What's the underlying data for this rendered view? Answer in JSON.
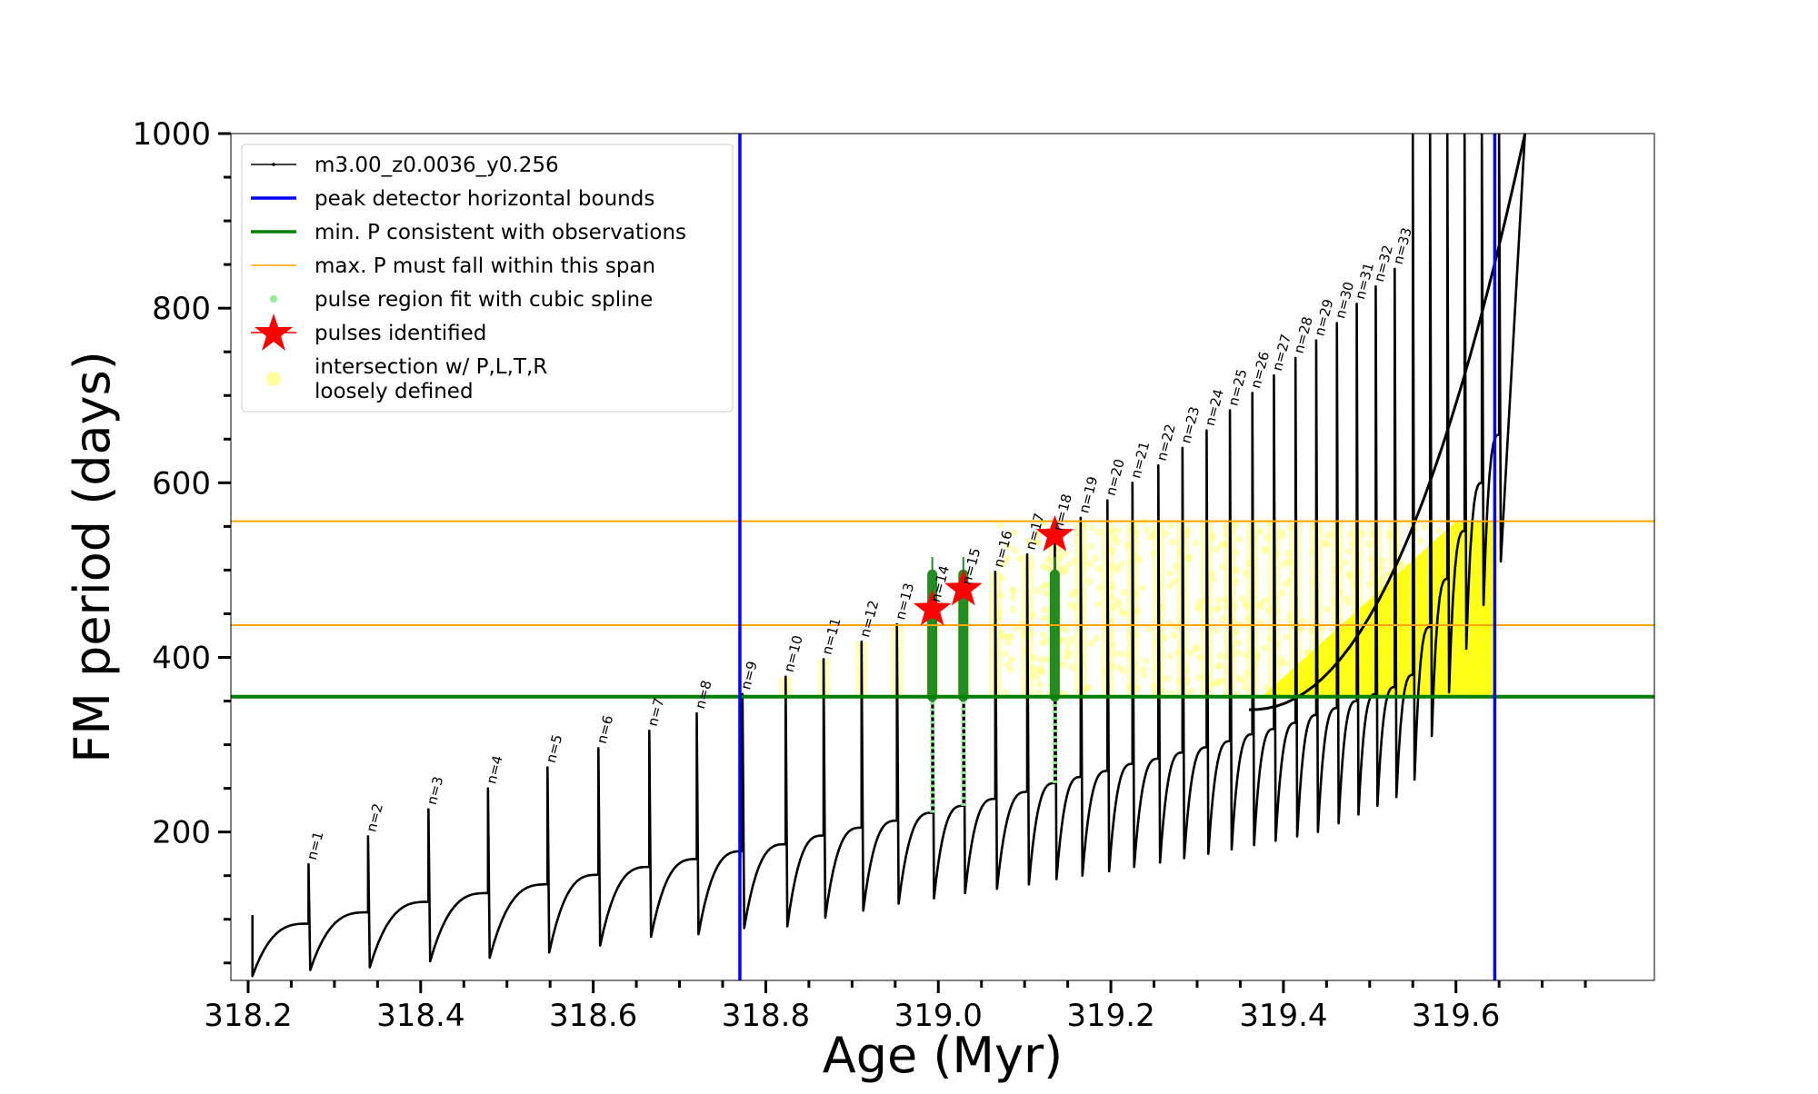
{
  "chart_data": {
    "type": "line",
    "title": "",
    "xlabel": "Age (Myr)",
    "ylabel": "FM period (days)",
    "xlim": [
      318.18,
      319.83
    ],
    "ylim": [
      30,
      1000
    ],
    "x_ticks": [
      318.2,
      318.4,
      318.6,
      318.8,
      319.0,
      319.2,
      319.4,
      319.6
    ],
    "x_tick_labels": [
      "318.2",
      "318.4",
      "318.6",
      "318.8",
      "319.0",
      "319.2",
      "319.4",
      "319.6"
    ],
    "y_ticks": [
      200,
      400,
      600,
      800,
      1000
    ],
    "y_tick_labels": [
      "200",
      "400",
      "600",
      "800",
      "1000"
    ],
    "legend": {
      "placement": "upper-left",
      "entries": [
        {
          "label": "m3.00_z0.0036_y0.256",
          "color": "#000000",
          "marker": "line-dot"
        },
        {
          "label": "peak detector horizontal bounds",
          "color": "#0000ff",
          "marker": "line"
        },
        {
          "label": "min. P consistent with observations",
          "color": "#008000",
          "marker": "line"
        },
        {
          "label": "max. P must fall within this span",
          "color": "#ffa500",
          "marker": "thin-line"
        },
        {
          "label": "pulse region fit with cubic spline",
          "color": "#90ee90",
          "marker": "dot"
        },
        {
          "label": "pulses identified",
          "color": "#ff0000",
          "marker": "star"
        },
        {
          "label": "intersection w/ P,L,T,R",
          "label2": "loosely defined",
          "color": "#ffffa0",
          "marker": "circle"
        }
      ]
    },
    "vertical_lines": [
      {
        "x": 318.77,
        "color": "#0000ff",
        "label": "peak detector horizontal bounds"
      },
      {
        "x": 319.645,
        "color": "#0000ff",
        "label": "peak detector horizontal bounds"
      }
    ],
    "horizontal_lines": [
      {
        "y": 355,
        "color": "#008000",
        "label": "min. P consistent with observations"
      },
      {
        "y": 437,
        "color": "#ffa500",
        "label": "max. P must fall within this span"
      },
      {
        "y": 556,
        "color": "#ffa500",
        "label": "max. P must fall within this span"
      }
    ],
    "pulses": [
      {
        "n": 1,
        "x": 318.27,
        "peak": 163,
        "min": 42,
        "base_before": 95
      },
      {
        "n": 2,
        "x": 318.339,
        "peak": 195,
        "min": 45,
        "base_before": 108
      },
      {
        "n": 3,
        "x": 318.409,
        "peak": 226,
        "min": 52,
        "base_before": 120
      },
      {
        "n": 4,
        "x": 318.478,
        "peak": 250,
        "min": 56,
        "base_before": 130
      },
      {
        "n": 5,
        "x": 318.547,
        "peak": 274,
        "min": 62,
        "base_before": 140
      },
      {
        "n": 6,
        "x": 318.606,
        "peak": 296,
        "min": 70,
        "base_before": 151
      },
      {
        "n": 7,
        "x": 318.665,
        "peak": 316,
        "min": 80,
        "base_before": 160
      },
      {
        "n": 8,
        "x": 318.72,
        "peak": 336,
        "min": 83,
        "base_before": 169
      },
      {
        "n": 9,
        "x": 318.773,
        "peak": 358,
        "min": 90,
        "base_before": 178
      },
      {
        "n": 10,
        "x": 318.823,
        "peak": 378,
        "min": 92,
        "base_before": 186
      },
      {
        "n": 11,
        "x": 318.867,
        "peak": 398,
        "min": 102,
        "base_before": 196
      },
      {
        "n": 12,
        "x": 318.911,
        "peak": 418,
        "min": 110,
        "base_before": 205
      },
      {
        "n": 13,
        "x": 318.952,
        "peak": 438,
        "min": 118,
        "base_before": 213
      },
      {
        "n": 14,
        "x": 318.993,
        "peak": 458,
        "min": 124,
        "base_before": 222
      },
      {
        "n": 15,
        "x": 319.029,
        "peak": 478,
        "min": 130,
        "base_before": 230
      },
      {
        "n": 16,
        "x": 319.066,
        "peak": 498,
        "min": 135,
        "base_before": 238
      },
      {
        "n": 17,
        "x": 319.103,
        "peak": 518,
        "min": 140,
        "base_before": 246
      },
      {
        "n": 18,
        "x": 319.135,
        "peak": 540,
        "min": 146,
        "base_before": 256
      },
      {
        "n": 19,
        "x": 319.165,
        "peak": 560,
        "min": 150,
        "base_before": 263
      },
      {
        "n": 20,
        "x": 319.196,
        "peak": 580,
        "min": 155,
        "base_before": 270
      },
      {
        "n": 21,
        "x": 319.225,
        "peak": 600,
        "min": 160,
        "base_before": 278
      },
      {
        "n": 22,
        "x": 319.255,
        "peak": 620,
        "min": 165,
        "base_before": 284
      },
      {
        "n": 23,
        "x": 319.283,
        "peak": 640,
        "min": 170,
        "base_before": 291
      },
      {
        "n": 24,
        "x": 319.311,
        "peak": 660,
        "min": 175,
        "base_before": 297
      },
      {
        "n": 25,
        "x": 319.338,
        "peak": 683,
        "min": 180,
        "base_before": 304
      },
      {
        "n": 26,
        "x": 319.364,
        "peak": 703,
        "min": 185,
        "base_before": 312
      },
      {
        "n": 27,
        "x": 319.389,
        "peak": 723,
        "min": 190,
        "base_before": 318
      },
      {
        "n": 28,
        "x": 319.414,
        "peak": 743,
        "min": 195,
        "base_before": 325
      },
      {
        "n": 29,
        "x": 319.438,
        "peak": 763,
        "min": 200,
        "base_before": 334
      },
      {
        "n": 30,
        "x": 319.462,
        "peak": 783,
        "min": 210,
        "base_before": 342
      },
      {
        "n": 31,
        "x": 319.485,
        "peak": 805,
        "min": 220,
        "base_before": 350
      },
      {
        "n": 32,
        "x": 319.507,
        "peak": 825,
        "min": 230,
        "base_before": 358
      },
      {
        "n": 33,
        "x": 319.529,
        "peak": 845,
        "min": 240,
        "base_before": 366
      }
    ],
    "pulse_labels": [
      "n=1",
      "n=2",
      "n=3",
      "n=4",
      "n=5",
      "n=6",
      "n=7",
      "n=8",
      "n=9",
      "n=10",
      "n=11",
      "n=12",
      "n=13",
      "n=14",
      "n=15",
      "n=16",
      "n=17",
      "n=18",
      "n=19",
      "n=20",
      "n=21",
      "n=22",
      "n=23",
      "n=24",
      "n=25",
      "n=26",
      "n=27",
      "n=28",
      "n=29",
      "n=30",
      "n=31",
      "n=32",
      "n=33"
    ],
    "extra_spike_x": [
      319.55,
      319.57,
      319.59,
      319.61,
      319.63,
      319.65
    ],
    "track_start": {
      "x": 318.205,
      "y": 35
    },
    "track_end": {
      "x": 319.68,
      "y": 1000
    },
    "pulses_identified": [
      {
        "n": 14,
        "x": 318.993,
        "y": 455
      },
      {
        "n": 15,
        "x": 319.029,
        "y": 478
      },
      {
        "n": 18,
        "x": 319.135,
        "y": 540
      }
    ],
    "spline_fit_pulses": [
      14,
      15,
      18
    ],
    "intersection_region": {
      "x_range": [
        318.77,
        319.645
      ],
      "y_range": [
        355,
        556
      ]
    }
  }
}
